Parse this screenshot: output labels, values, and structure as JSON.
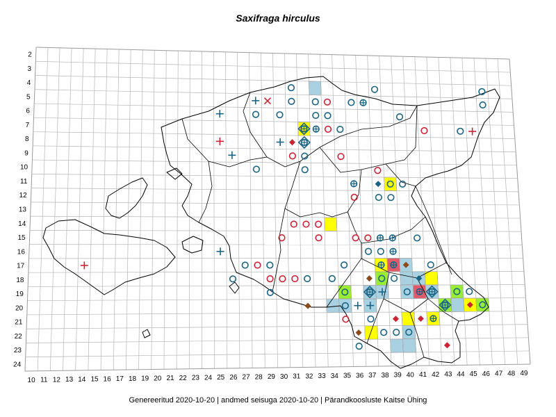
{
  "title": "Saxifraga hirculus",
  "footer": "Genereeritud 2020-10-20  |  andmed seisuga 2020-10-20  |  Pärandkoosluste Kaitse Ühing",
  "grid": {
    "col_labels": [
      "10",
      "11",
      "12",
      "13",
      "14",
      "15",
      "16",
      "17",
      "18",
      "19",
      "20",
      "21",
      "22",
      "23",
      "24",
      "25",
      "26",
      "27",
      "28",
      "29",
      "30",
      "31",
      "32",
      "33",
      "34",
      "35",
      "36",
      "37",
      "38",
      "39",
      "40",
      "41",
      "42",
      "43",
      "44",
      "45",
      "46",
      "47",
      "48",
      "49"
    ],
    "row_labels": [
      "2",
      "3",
      "4",
      "5",
      "6",
      "7",
      "8",
      "9",
      "10",
      "11",
      "12",
      "13",
      "14",
      "15",
      "16",
      "17",
      "18",
      "19",
      "20",
      "21",
      "22",
      "23",
      "24"
    ],
    "col_start": 10,
    "row_start": 2
  },
  "colors": {
    "yellow": "#ffff00",
    "green": "#99ee33",
    "lightblue": "#a8d2e2",
    "red_cell": "#e05a6a",
    "blue_marker": "#1a6385",
    "red_marker": "#cc2233",
    "brown_marker": "#8b4a1c"
  },
  "cells": [
    {
      "col": 33,
      "row": 4,
      "color": "lightblue"
    },
    {
      "col": 32,
      "row": 7,
      "color": "yellow"
    },
    {
      "col": 34,
      "row": 14,
      "color": "yellow"
    },
    {
      "col": 39,
      "row": 11,
      "color": "yellow"
    },
    {
      "col": 38,
      "row": 17,
      "color": "yellow"
    },
    {
      "col": 39,
      "row": 17,
      "color": "red_cell"
    },
    {
      "col": 40,
      "row": 17,
      "color": "lightblue"
    },
    {
      "col": 38,
      "row": 18,
      "color": "green"
    },
    {
      "col": 40,
      "row": 18,
      "color": "lightblue"
    },
    {
      "col": 41,
      "row": 18,
      "color": "lightblue"
    },
    {
      "col": 42,
      "row": 18,
      "color": "yellow"
    },
    {
      "col": 35,
      "row": 19,
      "color": "green"
    },
    {
      "col": 37,
      "row": 19,
      "color": "lightblue"
    },
    {
      "col": 38,
      "row": 19,
      "color": "lightblue"
    },
    {
      "col": 40,
      "row": 19,
      "color": "lightblue"
    },
    {
      "col": 41,
      "row": 19,
      "color": "red_cell"
    },
    {
      "col": 42,
      "row": 19,
      "color": "lightblue"
    },
    {
      "col": 44,
      "row": 19,
      "color": "green"
    },
    {
      "col": 34,
      "row": 20,
      "color": "lightblue"
    },
    {
      "col": 35,
      "row": 20,
      "color": "lightblue"
    },
    {
      "col": 37,
      "row": 20,
      "color": "lightblue"
    },
    {
      "col": 43,
      "row": 20,
      "color": "green"
    },
    {
      "col": 44,
      "row": 20,
      "color": "lightblue"
    },
    {
      "col": 45,
      "row": 20,
      "color": "yellow"
    },
    {
      "col": 46,
      "row": 20,
      "color": "green"
    },
    {
      "col": 40,
      "row": 21,
      "color": "yellow"
    },
    {
      "col": 42,
      "row": 21,
      "color": "yellow"
    },
    {
      "col": 37,
      "row": 22,
      "color": "yellow"
    },
    {
      "col": 40,
      "row": 22,
      "color": "lightblue"
    },
    {
      "col": 39,
      "row": 23,
      "color": "lightblue"
    },
    {
      "col": 40,
      "row": 23,
      "color": "lightblue"
    }
  ],
  "markers": [
    {
      "col": 31,
      "row": 4,
      "type": "circle",
      "color": "blue"
    },
    {
      "col": 38,
      "row": 4,
      "type": "circle",
      "color": "blue"
    },
    {
      "col": 28,
      "row": 5,
      "type": "plus",
      "color": "blue"
    },
    {
      "col": 29,
      "row": 5,
      "type": "x",
      "color": "red"
    },
    {
      "col": 31,
      "row": 5,
      "type": "circle",
      "color": "blue"
    },
    {
      "col": 33,
      "row": 5,
      "type": "circle",
      "color": "blue"
    },
    {
      "col": 34,
      "row": 5,
      "type": "circle",
      "color": "red"
    },
    {
      "col": 36,
      "row": 5,
      "type": "circle",
      "color": "blue"
    },
    {
      "col": 37,
      "row": 5,
      "type": "circle-plus",
      "color": "blue"
    },
    {
      "col": 47,
      "row": 4,
      "type": "circle",
      "color": "blue"
    },
    {
      "col": 47,
      "row": 5,
      "type": "circle",
      "color": "blue"
    },
    {
      "col": 25,
      "row": 6,
      "type": "plus",
      "color": "blue"
    },
    {
      "col": 28,
      "row": 6,
      "type": "circle",
      "color": "blue"
    },
    {
      "col": 30,
      "row": 6,
      "type": "circle",
      "color": "blue"
    },
    {
      "col": 33,
      "row": 6,
      "type": "circle",
      "color": "blue"
    },
    {
      "col": 34,
      "row": 6,
      "type": "circle",
      "color": "blue"
    },
    {
      "col": 40,
      "row": 6,
      "type": "circle",
      "color": "blue"
    },
    {
      "col": 32,
      "row": 7,
      "type": "diamond-circle-plus",
      "color": "blue"
    },
    {
      "col": 33,
      "row": 7,
      "type": "circle-plus",
      "color": "blue"
    },
    {
      "col": 34,
      "row": 7,
      "type": "circle",
      "color": "red"
    },
    {
      "col": 35,
      "row": 7,
      "type": "circle",
      "color": "blue"
    },
    {
      "col": 42,
      "row": 7,
      "type": "circle",
      "color": "red"
    },
    {
      "col": 45,
      "row": 7,
      "type": "circle",
      "color": "blue"
    },
    {
      "col": 46,
      "row": 7,
      "type": "plus",
      "color": "red"
    },
    {
      "col": 25,
      "row": 8,
      "type": "plus",
      "color": "red"
    },
    {
      "col": 30,
      "row": 8,
      "type": "plus",
      "color": "blue"
    },
    {
      "col": 31,
      "row": 8,
      "type": "diamond",
      "color": "red"
    },
    {
      "col": 32,
      "row": 8,
      "type": "diamond-circle-plus",
      "color": "blue"
    },
    {
      "col": 26,
      "row": 9,
      "type": "plus",
      "color": "blue"
    },
    {
      "col": 31,
      "row": 9,
      "type": "circle",
      "color": "red"
    },
    {
      "col": 32,
      "row": 9,
      "type": "circle",
      "color": "blue"
    },
    {
      "col": 35,
      "row": 9,
      "type": "circle",
      "color": "red"
    },
    {
      "col": 28,
      "row": 10,
      "type": "circle",
      "color": "blue"
    },
    {
      "col": 32,
      "row": 10,
      "type": "circle",
      "color": "blue"
    },
    {
      "col": 38,
      "row": 10,
      "type": "circle",
      "color": "red"
    },
    {
      "col": 36,
      "row": 11,
      "type": "circle-plus",
      "color": "blue"
    },
    {
      "col": 38,
      "row": 11,
      "type": "diamond",
      "color": "blue"
    },
    {
      "col": 39,
      "row": 11,
      "type": "circle",
      "color": "blue"
    },
    {
      "col": 40,
      "row": 11,
      "type": "circle",
      "color": "blue"
    },
    {
      "col": 36,
      "row": 12,
      "type": "circle",
      "color": "red"
    },
    {
      "col": 38,
      "row": 12,
      "type": "circle",
      "color": "blue"
    },
    {
      "col": 39,
      "row": 12,
      "type": "circle",
      "color": "blue"
    },
    {
      "col": 31,
      "row": 14,
      "type": "circle",
      "color": "red"
    },
    {
      "col": 32,
      "row": 14,
      "type": "circle",
      "color": "red"
    },
    {
      "col": 33,
      "row": 14,
      "type": "circle",
      "color": "red"
    },
    {
      "col": 30,
      "row": 15,
      "type": "circle",
      "color": "red"
    },
    {
      "col": 33,
      "row": 15,
      "type": "circle",
      "color": "red"
    },
    {
      "col": 36,
      "row": 15,
      "type": "circle",
      "color": "red"
    },
    {
      "col": 37,
      "row": 15,
      "type": "circle",
      "color": "red"
    },
    {
      "col": 38,
      "row": 15,
      "type": "circle-plus",
      "color": "blue"
    },
    {
      "col": 39,
      "row": 15,
      "type": "circle-plus",
      "color": "blue"
    },
    {
      "col": 41,
      "row": 15,
      "type": "circle",
      "color": "blue"
    },
    {
      "col": 25,
      "row": 16,
      "type": "plus",
      "color": "blue"
    },
    {
      "col": 37,
      "row": 16,
      "type": "circle",
      "color": "blue"
    },
    {
      "col": 38,
      "row": 16,
      "type": "circle",
      "color": "blue"
    },
    {
      "col": 39,
      "row": 16,
      "type": "circle-plus",
      "color": "blue"
    },
    {
      "col": 14,
      "row": 17,
      "type": "plus",
      "color": "red"
    },
    {
      "col": 27,
      "row": 17,
      "type": "circle",
      "color": "blue"
    },
    {
      "col": 28,
      "row": 17,
      "type": "circle",
      "color": "red"
    },
    {
      "col": 29,
      "row": 17,
      "type": "circle",
      "color": "blue"
    },
    {
      "col": 35,
      "row": 17,
      "type": "circle",
      "color": "blue"
    },
    {
      "col": 38,
      "row": 17,
      "type": "circle-plus",
      "color": "blue"
    },
    {
      "col": 39,
      "row": 17,
      "type": "circle-plus",
      "color": "blue"
    },
    {
      "col": 40,
      "row": 17,
      "type": "diamond",
      "color": "brown"
    },
    {
      "col": 42,
      "row": 17,
      "type": "circle",
      "color": "blue"
    },
    {
      "col": 26,
      "row": 18,
      "type": "circle",
      "color": "blue"
    },
    {
      "col": 29,
      "row": 18,
      "type": "circle",
      "color": "red"
    },
    {
      "col": 30,
      "row": 18,
      "type": "circle",
      "color": "red"
    },
    {
      "col": 31,
      "row": 18,
      "type": "circle",
      "color": "red"
    },
    {
      "col": 32,
      "row": 18,
      "type": "circle",
      "color": "blue"
    },
    {
      "col": 34,
      "row": 18,
      "type": "circle",
      "color": "blue"
    },
    {
      "col": 37,
      "row": 18,
      "type": "diamond",
      "color": "brown"
    },
    {
      "col": 38,
      "row": 18,
      "type": "circle",
      "color": "blue"
    },
    {
      "col": 39,
      "row": 18,
      "type": "circle",
      "color": "blue"
    },
    {
      "col": 41,
      "row": 18,
      "type": "diamond",
      "color": "blue"
    },
    {
      "col": 29,
      "row": 19,
      "type": "circle",
      "color": "blue"
    },
    {
      "col": 35,
      "row": 19,
      "type": "circle",
      "color": "blue"
    },
    {
      "col": 37,
      "row": 19,
      "type": "diamond-circle-plus",
      "color": "blue"
    },
    {
      "col": 38,
      "row": 19,
      "type": "plus",
      "color": "blue"
    },
    {
      "col": 40,
      "row": 19,
      "type": "circle",
      "color": "blue"
    },
    {
      "col": 41,
      "row": 19,
      "type": "circle-plus",
      "color": "blue"
    },
    {
      "col": 42,
      "row": 19,
      "type": "diamond-circle-plus",
      "color": "blue"
    },
    {
      "col": 44,
      "row": 19,
      "type": "circle",
      "color": "blue"
    },
    {
      "col": 45,
      "row": 19,
      "type": "circle",
      "color": "blue"
    },
    {
      "col": 32,
      "row": 20,
      "type": "diamond",
      "color": "brown"
    },
    {
      "col": 35,
      "row": 20,
      "type": "circle",
      "color": "blue"
    },
    {
      "col": 36,
      "row": 20,
      "type": "plus",
      "color": "blue"
    },
    {
      "col": 37,
      "row": 20,
      "type": "plus",
      "color": "blue"
    },
    {
      "col": 43,
      "row": 20,
      "type": "diamond-circle-plus",
      "color": "blue"
    },
    {
      "col": 45,
      "row": 20,
      "type": "diamond",
      "color": "red"
    },
    {
      "col": 46,
      "row": 20,
      "type": "circle",
      "color": "blue"
    },
    {
      "col": 35,
      "row": 21,
      "type": "circle",
      "color": "red"
    },
    {
      "col": 37,
      "row": 21,
      "type": "circle",
      "color": "blue"
    },
    {
      "col": 39,
      "row": 21,
      "type": "diamond",
      "color": "red"
    },
    {
      "col": 41,
      "row": 21,
      "type": "diamond",
      "color": "red"
    },
    {
      "col": 42,
      "row": 21,
      "type": "circle-plus",
      "color": "blue"
    },
    {
      "col": 36,
      "row": 22,
      "type": "diamond",
      "color": "brown"
    },
    {
      "col": 38,
      "row": 22,
      "type": "circle",
      "color": "blue"
    },
    {
      "col": 39,
      "row": 22,
      "type": "circle",
      "color": "blue"
    },
    {
      "col": 40,
      "row": 22,
      "type": "circle",
      "color": "blue"
    },
    {
      "col": 43,
      "row": 23,
      "type": "diamond",
      "color": "red"
    },
    {
      "col": 36,
      "row": 23,
      "type": "circle",
      "color": "blue"
    }
  ]
}
